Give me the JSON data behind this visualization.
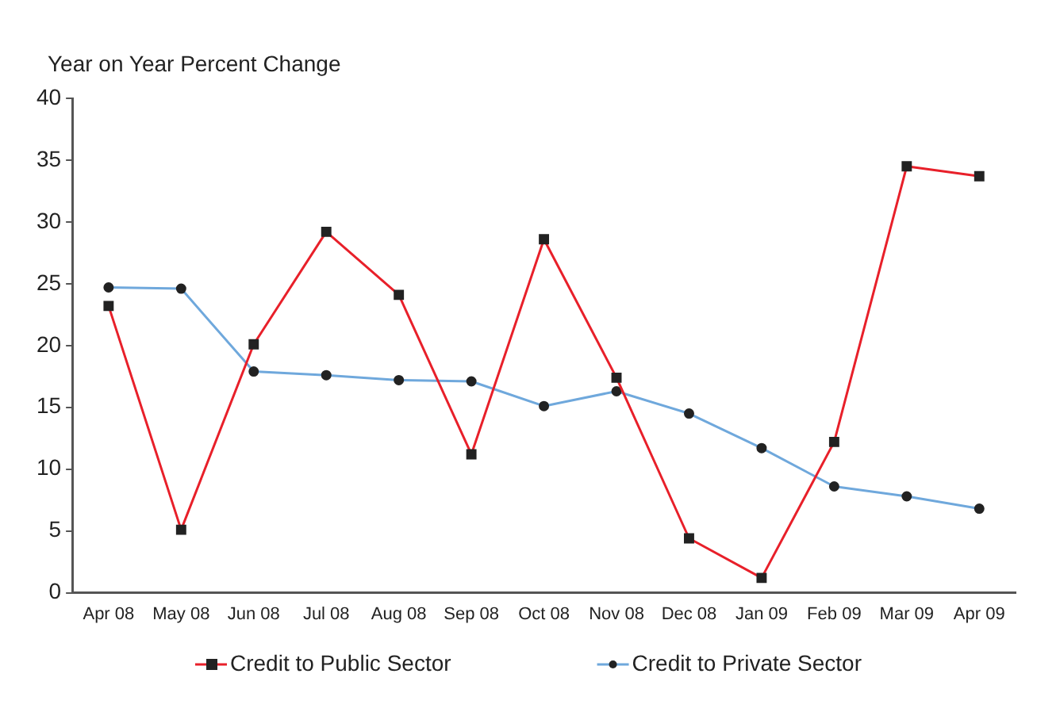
{
  "chart_data": {
    "type": "line",
    "ylabel": "Year on Year Percent Change",
    "categories": [
      "Apr 08",
      "May 08",
      "Jun 08",
      "Jul 08",
      "Aug 08",
      "Sep 08",
      "Oct 08",
      "Nov 08",
      "Dec 08",
      "Jan 09",
      "Feb 09",
      "Mar 09",
      "Apr 09"
    ],
    "series": [
      {
        "name": "Credit to Public Sector",
        "color": "#e8202a",
        "marker": "square",
        "values": [
          23.2,
          5.1,
          20.1,
          29.2,
          24.1,
          11.2,
          28.6,
          17.4,
          4.4,
          1.2,
          12.2,
          34.5,
          33.7
        ]
      },
      {
        "name": "Credit to Private Sector",
        "color": "#6fa8dc",
        "marker": "circle",
        "values": [
          24.7,
          24.6,
          17.9,
          17.6,
          17.2,
          17.1,
          15.1,
          16.3,
          14.5,
          11.7,
          8.6,
          7.8,
          6.8
        ]
      }
    ],
    "ylim": [
      0,
      40
    ],
    "yticks": [
      0,
      5,
      10,
      15,
      20,
      25,
      30,
      35,
      40
    ],
    "grid": false,
    "legend": "bottom"
  }
}
